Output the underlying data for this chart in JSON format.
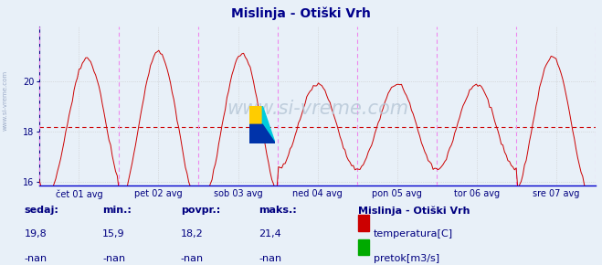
{
  "title": "Mislinja - Otiški Vrh",
  "title_color": "#00008b",
  "title_fontsize": 10,
  "bg_color": "#e8f0f8",
  "line_color": "#cc0000",
  "avg_value": 18.2,
  "ylim_min": 15.85,
  "ylim_max": 22.2,
  "yticks": [
    16,
    18,
    20
  ],
  "tick_color": "#000080",
  "grid_color": "#c8c8c8",
  "vline_color": "#ee88ee",
  "xticklabels": [
    "čet 01 avg",
    "pet 02 avg",
    "sob 03 avg",
    "ned 04 avg",
    "pon 05 avg",
    "tor 06 avg",
    "sre 07 avg"
  ],
  "watermark": "www.si-vreme.com",
  "watermark_color": "#b8c8d8",
  "watermark_fontsize": 16,
  "side_watermark": "www.si-vreme.com",
  "sedaj_label": "sedaj:",
  "min_label": "min.:",
  "povpr_label": "povpr.:",
  "maks_label": "maks.:",
  "sedaj": "19,8",
  "min_val": "15,9",
  "povpr": "18,2",
  "maks": "21,4",
  "nan_val": "-nan",
  "legend_title": "Mislinja - Otiški Vrh",
  "legend_temp": "temperatura[C]",
  "legend_flow": "pretok[m3/s]",
  "temp_color": "#cc0000",
  "flow_color": "#00aa00",
  "bottom_text_color": "#000080",
  "logo_yellow": "#ffcc00",
  "logo_cyan": "#00ccdd",
  "logo_blue": "#0033aa",
  "n_points": 336
}
